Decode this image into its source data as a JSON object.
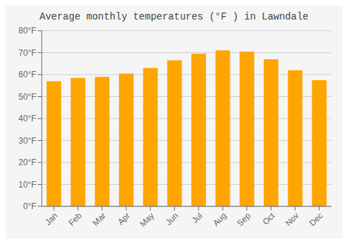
{
  "chart_data": {
    "type": "bar",
    "title": "Average monthly temperatures (°F ) in Lawndale",
    "categories": [
      "Jan",
      "Feb",
      "Mar",
      "Apr",
      "May",
      "Jun",
      "Jul",
      "Aug",
      "Sep",
      "Oct",
      "Nov",
      "Dec"
    ],
    "values": [
      57,
      58.5,
      59,
      60.5,
      63,
      66.5,
      69.5,
      71,
      70.5,
      67,
      62,
      57.5
    ],
    "color": "#FFA500",
    "ylim": [
      0,
      80
    ],
    "yticks": [
      {
        "value": 0,
        "label": "0°F"
      },
      {
        "value": 10,
        "label": "10°F"
      },
      {
        "value": 20,
        "label": "20°F"
      },
      {
        "value": 30,
        "label": "30°F"
      },
      {
        "value": 40,
        "label": "40°F"
      },
      {
        "value": 50,
        "label": "50°F"
      },
      {
        "value": 60,
        "label": "60°F"
      },
      {
        "value": 70,
        "label": "70°F"
      },
      {
        "value": 80,
        "label": "80°F"
      }
    ],
    "grid": true
  }
}
